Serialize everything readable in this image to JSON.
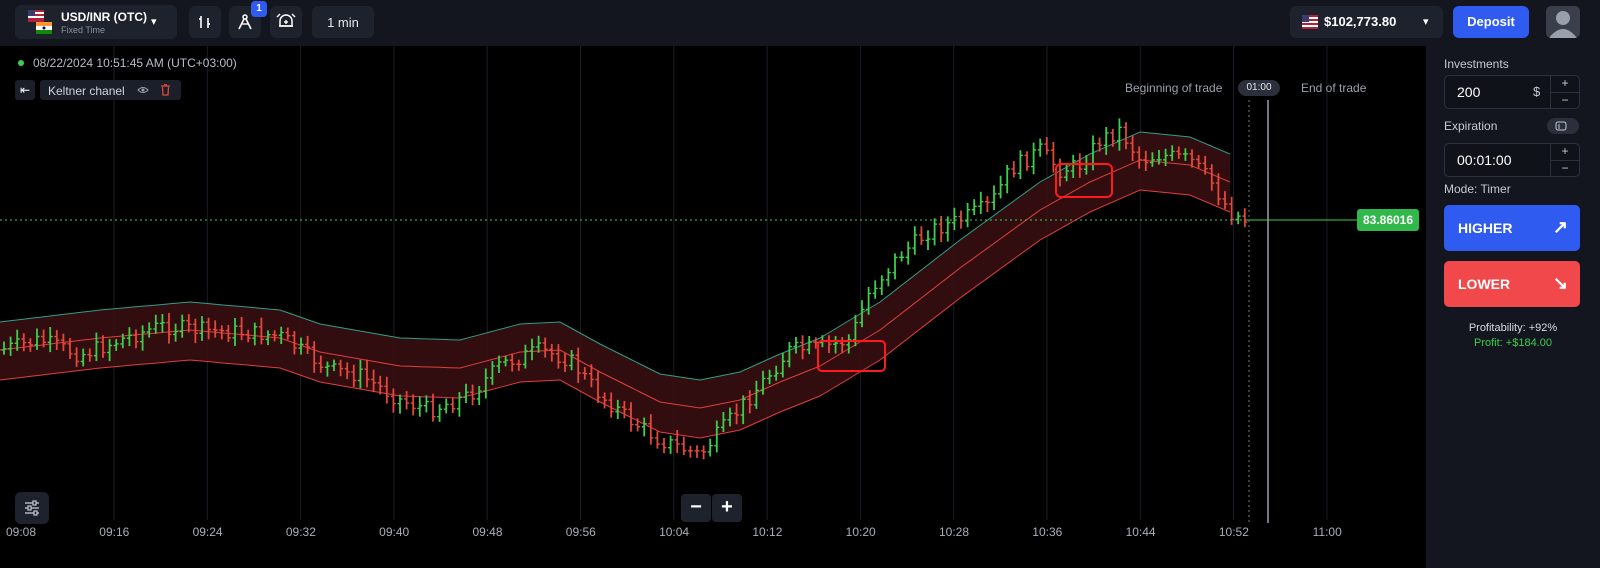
{
  "header": {
    "asset_name": "USD/INR (OTC)",
    "asset_type": "Fixed Time",
    "indicator_badge": "1",
    "timeframe": "1 min",
    "balance": "$102,773.80",
    "deposit_label": "Deposit"
  },
  "chart": {
    "datetime": "08/22/2024 10:51:45 AM (UTC+03:00)",
    "indicator_name": "Keltner chanel",
    "beginning_label": "Beginning of trade",
    "end_label": "End of trade",
    "timer": "01:00",
    "current_price": "83.86016",
    "time_ticks": [
      "09:08",
      "09:16",
      "09:24",
      "09:32",
      "09:40",
      "09:48",
      "09:56",
      "10:04",
      "10:12",
      "10:20",
      "10:28",
      "10:36",
      "10:44",
      "10:52",
      "11:00"
    ]
  },
  "panel": {
    "investments_label": "Investments",
    "investment_value": "200",
    "currency": "$",
    "expiration_label": "Expiration",
    "expiration_value": "00:01:00",
    "mode": "Mode: Timer",
    "higher_label": "HIGHER",
    "lower_label": "LOWER",
    "profitability": "Profitability: +92%",
    "profit": "Profit: +$184.00",
    "plus": "+",
    "minus": "−"
  },
  "colors": {
    "accent": "#2f5bf0",
    "bull": "#3ccf4e",
    "bear": "#e2483d",
    "higher": "#2f5bf0",
    "lower": "#f0484b",
    "channel_fill": "#3a0f12"
  }
}
